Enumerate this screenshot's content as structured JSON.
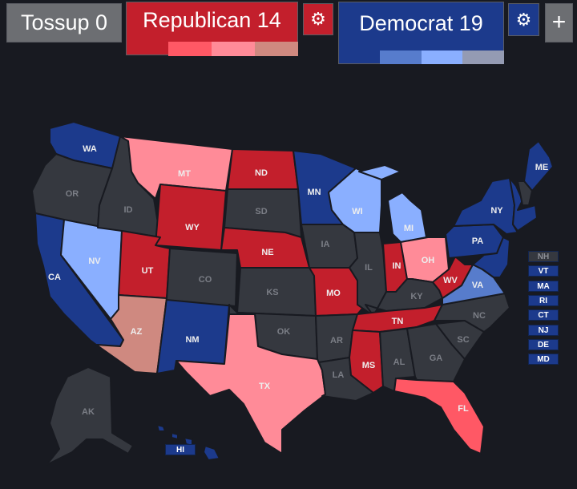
{
  "colors": {
    "tossup": "#35383f",
    "safe_r": "#c31f2c",
    "likely_r": "#ff5865",
    "lean_r": "#ff8b98",
    "tilt_r": "#cf8980",
    "safe_d": "#1c3a8c",
    "likely_d": "#577ccc",
    "lean_d": "#8aafff",
    "tilt_d": "#949bb3",
    "label_dark": "#eeeeee",
    "label_light": "#eeeeee",
    "label_tossup": "#7b7e86"
  },
  "header": {
    "tossup_label": "Tossup 0",
    "republican_label": "Republican 14",
    "democrat_label": "Democrat 19",
    "gear_icon": "⚙",
    "add_icon": "+"
  },
  "states": {
    "WA": "safe_d",
    "OR": "tossup",
    "CA": "safe_d",
    "NV": "lean_d",
    "ID": "tossup",
    "MT": "lean_r",
    "WY": "safe_r",
    "UT": "safe_r",
    "AZ": "tilt_r",
    "NM": "safe_d",
    "CO": "tossup",
    "ND": "safe_r",
    "SD": "tossup",
    "NE": "safe_r",
    "KS": "tossup",
    "OK": "tossup",
    "TX": "lean_r",
    "MN": "safe_d",
    "IA": "tossup",
    "MO": "safe_r",
    "AR": "tossup",
    "LA": "tossup",
    "WI": "lean_d",
    "IL": "tossup",
    "MI": "lean_d",
    "IN": "safe_r",
    "OH": "lean_r",
    "KY": "tossup",
    "TN": "safe_r",
    "MS": "safe_r",
    "AL": "tossup",
    "GA": "tossup",
    "FL": "likely_r",
    "SC": "tossup",
    "NC": "tossup",
    "VA": "likely_d",
    "WV": "safe_r",
    "PA": "safe_d",
    "NY": "safe_d",
    "ME": "safe_d",
    "AK": "tossup",
    "HI": "safe_d",
    "NH": "tossup"
  },
  "small_states": [
    {
      "code": "NH",
      "status": "tossup"
    },
    {
      "code": "VT",
      "status": "safe_d"
    },
    {
      "code": "MA",
      "status": "safe_d"
    },
    {
      "code": "RI",
      "status": "safe_d"
    },
    {
      "code": "CT",
      "status": "safe_d"
    },
    {
      "code": "NJ",
      "status": "safe_d"
    },
    {
      "code": "DE",
      "status": "safe_d"
    },
    {
      "code": "MD",
      "status": "safe_d"
    }
  ],
  "hi_label": "HI"
}
